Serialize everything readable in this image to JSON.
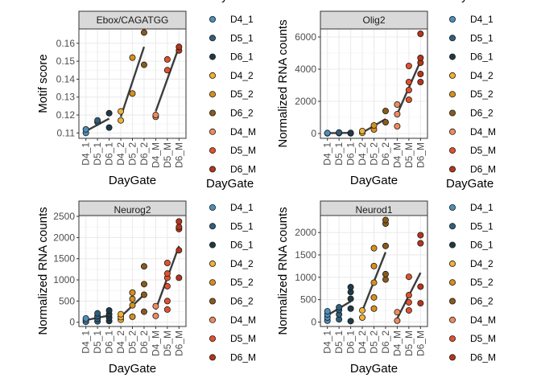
{
  "colors": {
    "D4_1": "#4a90bd",
    "D5_1": "#2f5f7d",
    "D6_1": "#1e3a48",
    "D4_2": "#f2b134",
    "D5_2": "#d58f1e",
    "D6_2": "#8a5a1c",
    "D4_M": "#ee8a5c",
    "D5_M": "#e2512c",
    "D6_M": "#b83417"
  },
  "legend_entries": [
    "D4_1",
    "D5_1",
    "D6_1",
    "D4_2",
    "D5_2",
    "D6_2",
    "D4_M",
    "D5_M",
    "D6_M"
  ],
  "legend_title": "DayGate",
  "x_axis_title": "DayGate",
  "chart_data": [
    {
      "type": "scatter",
      "facet": "Ebox/CAGATGG",
      "ylabel": "Motif score",
      "xlabel": "DayGate",
      "categories": [
        "D4_1",
        "D5_1",
        "D6_1",
        "D4_2",
        "D5_2",
        "D6_2",
        "D4_M",
        "D5_M",
        "D6_M"
      ],
      "ylim": [
        0.107,
        0.168
      ],
      "yticks": [
        0.11,
        0.12,
        0.13,
        0.14,
        0.15,
        0.16
      ],
      "ytick_labels": [
        "0.11",
        "0.12",
        "0.13",
        "0.14",
        "0.15",
        "0.16"
      ],
      "grid": true,
      "points": [
        {
          "x": "D4_1",
          "y": 0.11
        },
        {
          "x": "D4_1",
          "y": 0.112
        },
        {
          "x": "D5_1",
          "y": 0.116
        },
        {
          "x": "D5_1",
          "y": 0.117
        },
        {
          "x": "D6_1",
          "y": 0.113
        },
        {
          "x": "D6_1",
          "y": 0.121
        },
        {
          "x": "D4_2",
          "y": 0.117
        },
        {
          "x": "D4_2",
          "y": 0.122
        },
        {
          "x": "D5_2",
          "y": 0.132
        },
        {
          "x": "D5_2",
          "y": 0.152
        },
        {
          "x": "D6_2",
          "y": 0.148
        },
        {
          "x": "D6_2",
          "y": 0.166
        },
        {
          "x": "D4_M",
          "y": 0.119
        },
        {
          "x": "D4_M",
          "y": 0.12
        },
        {
          "x": "D5_M",
          "y": 0.145
        },
        {
          "x": "D5_M",
          "y": 0.151
        },
        {
          "x": "D6_M",
          "y": 0.156
        },
        {
          "x": "D6_M",
          "y": 0.158
        }
      ],
      "trend_lines": [
        {
          "from": {
            "x": "D4_1",
            "y": 0.111
          },
          "to": {
            "x": "D6_1",
            "y": 0.118
          }
        },
        {
          "from": {
            "x": "D4_2",
            "y": 0.119
          },
          "to": {
            "x": "D6_2",
            "y": 0.158
          }
        },
        {
          "from": {
            "x": "D4_M",
            "y": 0.122
          },
          "to": {
            "x": "D6_M",
            "y": 0.158
          }
        }
      ]
    },
    {
      "type": "scatter",
      "facet": "Olig2",
      "ylabel": "Normalized RNA counts",
      "xlabel": "DayGate",
      "categories": [
        "D4_1",
        "D5_1",
        "D6_1",
        "D4_2",
        "D5_2",
        "D6_2",
        "D4_M",
        "D5_M",
        "D6_M"
      ],
      "ylim": [
        -300,
        6500
      ],
      "yticks": [
        0,
        2000,
        4000,
        6000
      ],
      "ytick_labels": [
        "0",
        "2000",
        "4000",
        "6000"
      ],
      "grid": true,
      "points": [
        {
          "x": "D4_1",
          "y": 10
        },
        {
          "x": "D4_1",
          "y": 30
        },
        {
          "x": "D5_1",
          "y": 20
        },
        {
          "x": "D5_1",
          "y": 60
        },
        {
          "x": "D6_1",
          "y": 10
        },
        {
          "x": "D6_1",
          "y": 40
        },
        {
          "x": "D4_2",
          "y": 40
        },
        {
          "x": "D4_2",
          "y": 150
        },
        {
          "x": "D5_2",
          "y": 250
        },
        {
          "x": "D5_2",
          "y": 500
        },
        {
          "x": "D6_2",
          "y": 700
        },
        {
          "x": "D6_2",
          "y": 1400
        },
        {
          "x": "D4_M",
          "y": 450
        },
        {
          "x": "D4_M",
          "y": 1200
        },
        {
          "x": "D4_M",
          "y": 1800
        },
        {
          "x": "D5_M",
          "y": 2100
        },
        {
          "x": "D5_M",
          "y": 2700
        },
        {
          "x": "D5_M",
          "y": 3200
        },
        {
          "x": "D5_M",
          "y": 4200
        },
        {
          "x": "D6_M",
          "y": 3200
        },
        {
          "x": "D6_M",
          "y": 3700
        },
        {
          "x": "D6_M",
          "y": 4400
        },
        {
          "x": "D6_M",
          "y": 4700
        },
        {
          "x": "D6_M",
          "y": 6200
        }
      ],
      "trend_lines": [
        {
          "from": {
            "x": "D4_1",
            "y": 20
          },
          "to": {
            "x": "D6_1",
            "y": 40
          }
        },
        {
          "from": {
            "x": "D4_2",
            "y": 50
          },
          "to": {
            "x": "D6_2",
            "y": 900
          }
        },
        {
          "from": {
            "x": "D4_M",
            "y": 1200
          },
          "to": {
            "x": "D6_M",
            "y": 4500
          }
        }
      ]
    },
    {
      "type": "scatter",
      "facet": "Neurog2",
      "ylabel": "Normalized RNA counts",
      "xlabel": "DayGate",
      "categories": [
        "D4_1",
        "D5_1",
        "D6_1",
        "D4_2",
        "D5_2",
        "D6_2",
        "D4_M",
        "D5_M",
        "D6_M"
      ],
      "ylim": [
        -100,
        2520
      ],
      "yticks": [
        0,
        500,
        1000,
        1500,
        2000,
        2500
      ],
      "ytick_labels": [
        "0",
        "500",
        "1000",
        "1500",
        "2000",
        "2500"
      ],
      "grid": true,
      "points": [
        {
          "x": "D4_1",
          "y": 10
        },
        {
          "x": "D4_1",
          "y": 50
        },
        {
          "x": "D4_1",
          "y": 90
        },
        {
          "x": "D5_1",
          "y": 20
        },
        {
          "x": "D5_1",
          "y": 80
        },
        {
          "x": "D5_1",
          "y": 140
        },
        {
          "x": "D5_1",
          "y": 210
        },
        {
          "x": "D6_1",
          "y": 30
        },
        {
          "x": "D6_1",
          "y": 110
        },
        {
          "x": "D6_1",
          "y": 190
        },
        {
          "x": "D6_1",
          "y": 280
        },
        {
          "x": "D4_2",
          "y": 60
        },
        {
          "x": "D4_2",
          "y": 120
        },
        {
          "x": "D4_2",
          "y": 190
        },
        {
          "x": "D5_2",
          "y": 130
        },
        {
          "x": "D5_2",
          "y": 400
        },
        {
          "x": "D5_2",
          "y": 550
        },
        {
          "x": "D5_2",
          "y": 700
        },
        {
          "x": "D6_2",
          "y": 250
        },
        {
          "x": "D6_2",
          "y": 650
        },
        {
          "x": "D6_2",
          "y": 900
        },
        {
          "x": "D6_2",
          "y": 1320
        },
        {
          "x": "D4_M",
          "y": 150
        },
        {
          "x": "D4_M",
          "y": 380
        },
        {
          "x": "D5_M",
          "y": 300
        },
        {
          "x": "D5_M",
          "y": 500
        },
        {
          "x": "D5_M",
          "y": 850
        },
        {
          "x": "D5_M",
          "y": 1050
        },
        {
          "x": "D5_M",
          "y": 1150
        },
        {
          "x": "D5_M",
          "y": 1400
        },
        {
          "x": "D6_M",
          "y": 1050
        },
        {
          "x": "D6_M",
          "y": 1700
        },
        {
          "x": "D6_M",
          "y": 2200
        },
        {
          "x": "D6_M",
          "y": 2250
        },
        {
          "x": "D6_M",
          "y": 2380
        }
      ],
      "trend_lines": [
        {
          "from": {
            "x": "D4_1",
            "y": 50
          },
          "to": {
            "x": "D6_1",
            "y": 160
          }
        },
        {
          "from": {
            "x": "D4_2",
            "y": 130
          },
          "to": {
            "x": "D6_2",
            "y": 650
          }
        },
        {
          "from": {
            "x": "D4_M",
            "y": 300
          },
          "to": {
            "x": "D6_M",
            "y": 1800
          }
        }
      ]
    },
    {
      "type": "scatter",
      "facet": "Neurod1",
      "ylabel": "Normalized RNA counts",
      "xlabel": "DayGate",
      "categories": [
        "D4_1",
        "D5_1",
        "D6_1",
        "D4_2",
        "D5_2",
        "D6_2",
        "D4_M",
        "D5_M",
        "D6_M"
      ],
      "ylim": [
        -100,
        2380
      ],
      "yticks": [
        0,
        500,
        1000,
        1500,
        2000
      ],
      "ytick_labels": [
        "0",
        "500",
        "1000",
        "1500",
        "2000"
      ],
      "grid": true,
      "points": [
        {
          "x": "D4_1",
          "y": 30
        },
        {
          "x": "D4_1",
          "y": 100
        },
        {
          "x": "D4_1",
          "y": 170
        },
        {
          "x": "D4_1",
          "y": 240
        },
        {
          "x": "D5_1",
          "y": 60
        },
        {
          "x": "D5_1",
          "y": 170
        },
        {
          "x": "D5_1",
          "y": 270
        },
        {
          "x": "D5_1",
          "y": 330
        },
        {
          "x": "D6_1",
          "y": 20
        },
        {
          "x": "D6_1",
          "y": 300
        },
        {
          "x": "D6_1",
          "y": 520
        },
        {
          "x": "D6_1",
          "y": 670
        },
        {
          "x": "D6_1",
          "y": 780
        },
        {
          "x": "D4_2",
          "y": 100
        },
        {
          "x": "D4_2",
          "y": 260
        },
        {
          "x": "D5_2",
          "y": 300
        },
        {
          "x": "D5_2",
          "y": 550
        },
        {
          "x": "D5_2",
          "y": 880
        },
        {
          "x": "D5_2",
          "y": 1250
        },
        {
          "x": "D5_2",
          "y": 1650
        },
        {
          "x": "D6_2",
          "y": 950
        },
        {
          "x": "D6_2",
          "y": 1070
        },
        {
          "x": "D6_2",
          "y": 1700
        },
        {
          "x": "D6_2",
          "y": 2200
        },
        {
          "x": "D6_2",
          "y": 2280
        },
        {
          "x": "D4_M",
          "y": 30
        },
        {
          "x": "D4_M",
          "y": 220
        },
        {
          "x": "D5_M",
          "y": 260
        },
        {
          "x": "D5_M",
          "y": 440
        },
        {
          "x": "D5_M",
          "y": 600
        },
        {
          "x": "D5_M",
          "y": 1010
        },
        {
          "x": "D6_M",
          "y": 420
        },
        {
          "x": "D6_M",
          "y": 790
        },
        {
          "x": "D6_M",
          "y": 1760
        },
        {
          "x": "D6_M",
          "y": 1940
        }
      ],
      "trend_lines": [
        {
          "from": {
            "x": "D4_1",
            "y": 150
          },
          "to": {
            "x": "D6_1",
            "y": 460
          }
        },
        {
          "from": {
            "x": "D4_2",
            "y": 250
          },
          "to": {
            "x": "D6_2",
            "y": 1560
          }
        },
        {
          "from": {
            "x": "D4_M",
            "y": 80
          },
          "to": {
            "x": "D6_M",
            "y": 1100
          }
        }
      ]
    }
  ]
}
